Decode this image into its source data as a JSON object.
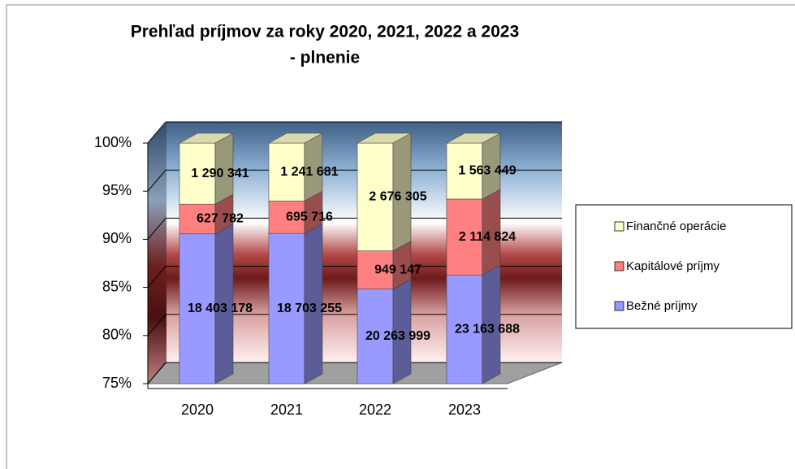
{
  "chart_data": {
    "type": "bar",
    "stacking": "percent",
    "title": [
      "Prehľad príjmov za roky 2020, 2021, 2022 a 2023",
      "- plnenie"
    ],
    "categories": [
      "2020",
      "2021",
      "2022",
      "2023"
    ],
    "series": [
      {
        "name": "Bežné príjmy",
        "color": "#9999ff",
        "values": [
          18403178,
          18703255,
          20263999,
          23163688
        ],
        "value_labels": [
          "18 403 178",
          "18 703 255",
          "20 263 999",
          "23 163 688"
        ]
      },
      {
        "name": "Kapitálové príjmy",
        "color": "#ff8080",
        "values": [
          627782,
          695716,
          949147,
          2114824
        ],
        "value_labels": [
          "627 782",
          "695 716",
          "949 147",
          "2 114 824"
        ]
      },
      {
        "name": "Finančné operácie",
        "color": "#ffffcc",
        "values": [
          1290341,
          1241681,
          2676305,
          1563449
        ],
        "value_labels": [
          "1 290 341",
          "1 241 681",
          "2 676 305",
          "1 563 449"
        ]
      }
    ],
    "ylim": [
      75,
      100
    ],
    "yticks": [
      {
        "value": 75,
        "label": "75%"
      },
      {
        "value": 80,
        "label": "80%"
      },
      {
        "value": 85,
        "label": "85%"
      },
      {
        "value": 90,
        "label": "90%"
      },
      {
        "value": 95,
        "label": "95%"
      },
      {
        "value": 100,
        "label": "100%"
      }
    ],
    "grid": true,
    "legend": "right"
  }
}
